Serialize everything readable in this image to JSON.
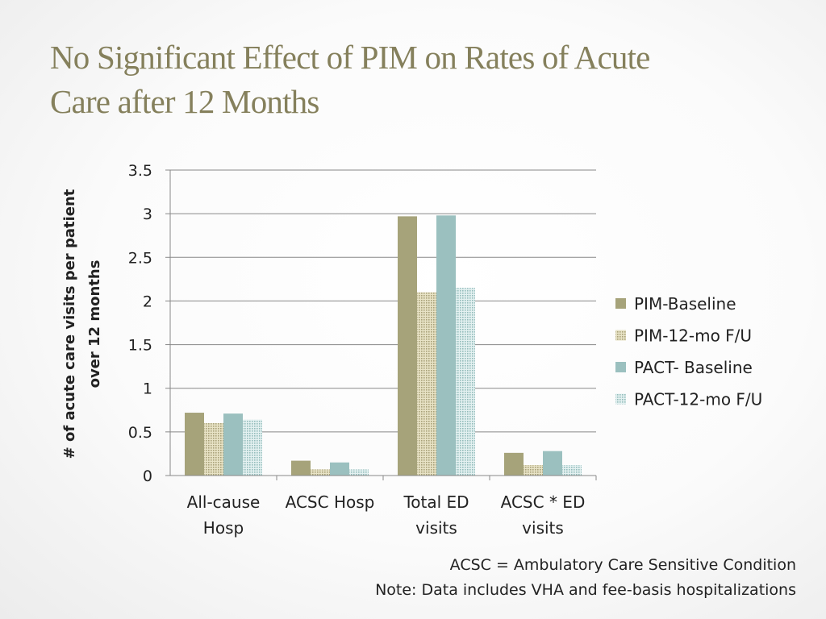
{
  "slide": {
    "title_line1": "No Significant Effect of PIM on Rates of Acute",
    "title_line2": "Care after 12 Months",
    "footnote_line1": "ACSC = Ambulatory Care Sensitive Condition",
    "footnote_line2": "Note: Data includes VHA and fee-basis hospitalizations"
  },
  "colors": {
    "title": "#85805c",
    "pim_baseline": "#a6a37a",
    "pim_followup": "#c9c39b",
    "pact_baseline": "#9bc0bf",
    "pact_followup": "#c3dede",
    "gridline": "#888888"
  },
  "chart_data": {
    "type": "bar",
    "title": "",
    "ylabel_lines": [
      "# of acute care visits per patient",
      "over 12 months"
    ],
    "xlabel": "",
    "ylim": [
      0,
      3.5
    ],
    "yticks": [
      "0",
      "0.5",
      "1",
      "1.5",
      "2",
      "2.5",
      "3",
      "3.5"
    ],
    "grid": true,
    "legend_position": "right",
    "categories": [
      [
        "All-cause",
        "Hosp"
      ],
      [
        "ACSC Hosp"
      ],
      [
        "Total ED",
        "visits"
      ],
      [
        "ACSC * ED",
        "visits"
      ]
    ],
    "series": [
      {
        "name": "PIM-Baseline",
        "key": "pim_baseline",
        "pattern": "solid",
        "values": [
          0.72,
          0.17,
          2.97,
          0.26
        ]
      },
      {
        "name": "PIM-12-mo F/U",
        "key": "pim_followup",
        "pattern": "dotted",
        "values": [
          0.6,
          0.07,
          2.1,
          0.12
        ]
      },
      {
        "name": "PACT- Baseline",
        "key": "pact_baseline",
        "pattern": "solid",
        "values": [
          0.71,
          0.15,
          2.98,
          0.28
        ]
      },
      {
        "name": "PACT-12-mo F/U",
        "key": "pact_followup",
        "pattern": "dotted",
        "values": [
          0.64,
          0.07,
          2.15,
          0.12
        ]
      }
    ]
  }
}
